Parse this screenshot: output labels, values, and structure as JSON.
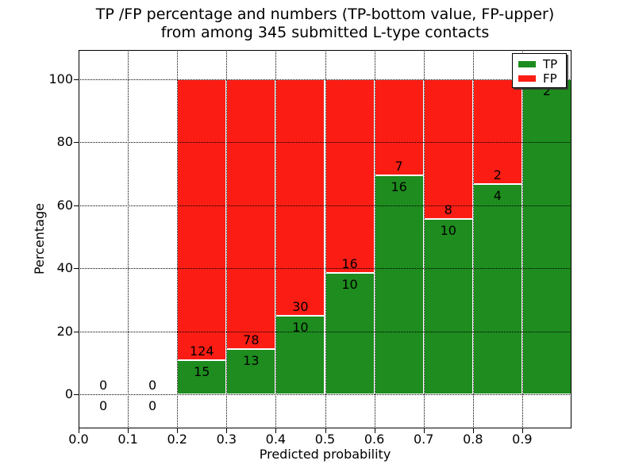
{
  "title": {
    "line1": "TP /FP percentage and numbers (TP-bottom value, FP-upper)",
    "line2": "from among 345 submitted L-type contacts"
  },
  "axes": {
    "xlabel": "Predicted probability",
    "ylabel": "Percentage",
    "x_tick_labels": [
      "0.0",
      "0.1",
      "0.2",
      "0.3",
      "0.4",
      "0.5",
      "0.6",
      "0.7",
      "0.8",
      "0.9"
    ],
    "x_tick_values": [
      0.0,
      0.1,
      0.2,
      0.3,
      0.4,
      0.5,
      0.6,
      0.7,
      0.8,
      0.9
    ],
    "y_tick_labels": [
      "0",
      "20",
      "40",
      "60",
      "80",
      "100"
    ],
    "y_tick_values": [
      0,
      20,
      40,
      60,
      80,
      100
    ],
    "xlim": [
      0.0,
      1.0
    ],
    "ylim": [
      -10.8,
      109.3
    ],
    "grid": "dotted"
  },
  "legend": {
    "position": "upper right",
    "items": [
      {
        "label": "TP",
        "color": "#1e8c1e"
      },
      {
        "label": "FP",
        "color": "#fb1d14"
      }
    ]
  },
  "colors": {
    "tp": "#1e8c1e",
    "fp": "#fb1d14",
    "bar_edge": "#ffffff",
    "text": "#000000",
    "background": "#ffffff"
  },
  "chart_data": {
    "type": "bar",
    "stacked": true,
    "note": "Each bin bar is normalized to 100%; TP (green) on bottom, FP (red) on top. Counts annotated at the TP/FP boundary: FP count above, TP count below. Total contacts = 345.",
    "bins": [
      {
        "x0": 0.0,
        "x1": 0.1,
        "tp": 0,
        "fp": 0,
        "tp_pct": 0.0
      },
      {
        "x0": 0.1,
        "x1": 0.2,
        "tp": 0,
        "fp": 0,
        "tp_pct": 0.0
      },
      {
        "x0": 0.2,
        "x1": 0.3,
        "tp": 15,
        "fp": 124,
        "tp_pct": 10.79
      },
      {
        "x0": 0.3,
        "x1": 0.4,
        "tp": 13,
        "fp": 78,
        "tp_pct": 14.29
      },
      {
        "x0": 0.4,
        "x1": 0.5,
        "tp": 10,
        "fp": 30,
        "tp_pct": 25.0
      },
      {
        "x0": 0.5,
        "x1": 0.6,
        "tp": 10,
        "fp": 16,
        "tp_pct": 38.46
      },
      {
        "x0": 0.6,
        "x1": 0.7,
        "tp": 16,
        "fp": 7,
        "tp_pct": 69.57
      },
      {
        "x0": 0.7,
        "x1": 0.8,
        "tp": 10,
        "fp": 8,
        "tp_pct": 55.56
      },
      {
        "x0": 0.8,
        "x1": 0.9,
        "tp": 4,
        "fp": 2,
        "tp_pct": 66.67
      },
      {
        "x0": 0.9,
        "x1": 1.0,
        "tp": 2,
        "fp": 0,
        "tp_pct": 100.0
      }
    ],
    "series": [
      {
        "name": "TP",
        "values": [
          0,
          0,
          15,
          13,
          10,
          10,
          16,
          10,
          4,
          2
        ]
      },
      {
        "name": "FP",
        "values": [
          0,
          0,
          124,
          78,
          30,
          16,
          7,
          8,
          2,
          0
        ]
      }
    ]
  }
}
